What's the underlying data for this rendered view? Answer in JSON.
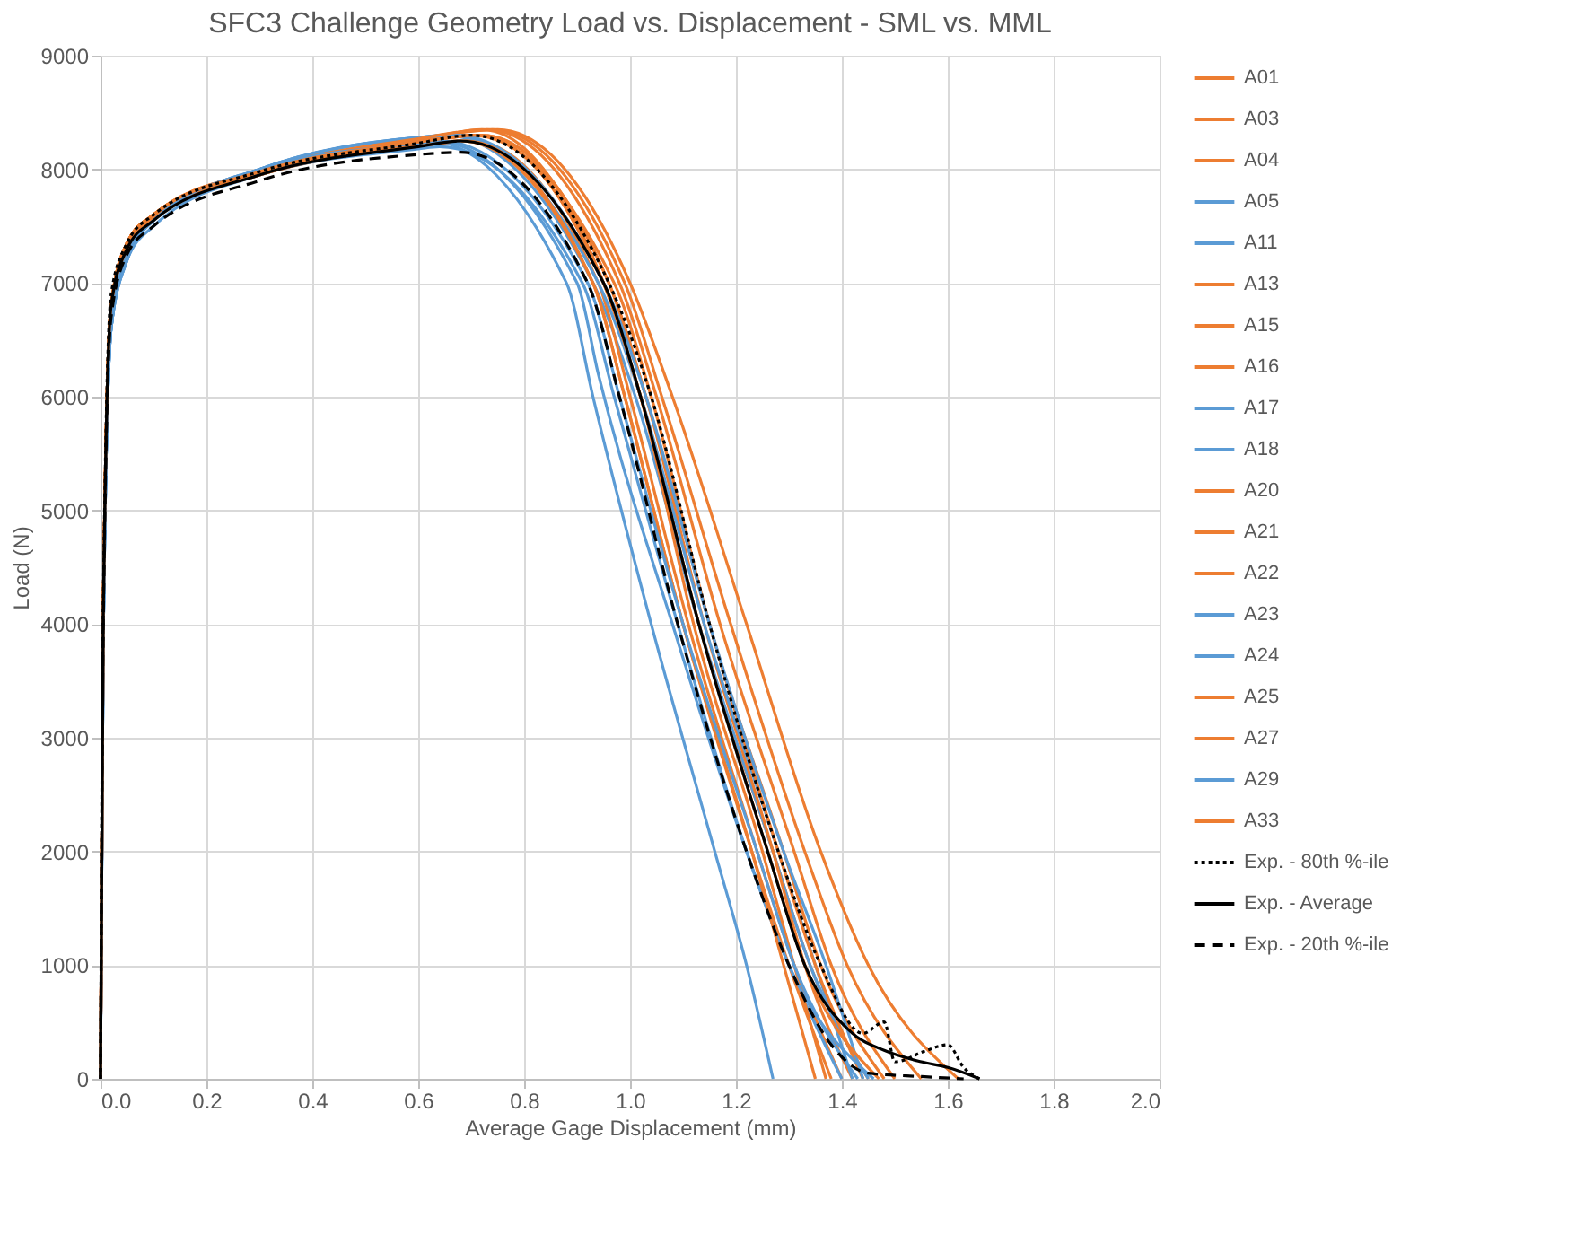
{
  "chart_data": {
    "type": "line",
    "title": "SFC3 Challenge Geometry Load vs. Displacement - SML vs. MML",
    "xlabel": "Average Gage Displacement (mm)",
    "ylabel": "Load (N)",
    "xlim": [
      0,
      2
    ],
    "xticks": [
      {
        "value": 0,
        "label": "0.0"
      },
      {
        "value": 0.2,
        "label": "0.2"
      },
      {
        "value": 0.4,
        "label": "0.4"
      },
      {
        "value": 0.6,
        "label": "0.6"
      },
      {
        "value": 0.8,
        "label": "0.8"
      },
      {
        "value": 1,
        "label": "1.0"
      },
      {
        "value": 1.2,
        "label": "1.2"
      },
      {
        "value": 1.4,
        "label": "1.4"
      },
      {
        "value": 1.6,
        "label": "1.6"
      },
      {
        "value": 1.8,
        "label": "1.8"
      },
      {
        "value": 2,
        "label": "2.0"
      }
    ],
    "ylim": [
      0,
      9000
    ],
    "yticks": [
      0,
      1000,
      2000,
      3000,
      4000,
      5000,
      6000,
      7000,
      8000,
      9000
    ],
    "grid": true,
    "legend": "right",
    "marker": "none",
    "series": [
      {
        "name": "A01",
        "color": "#ed7d31",
        "line_style": "solid",
        "x": [
          0,
          0.005,
          0.02,
          0.05,
          0.1,
          0.3,
          0.6,
          0.72,
          0.95,
          1.02,
          1.13,
          1.27,
          1.34,
          1.45
        ],
        "values": [
          0,
          4000,
          6800,
          7350,
          7600,
          7980,
          8250,
          8350,
          7000,
          6000,
          4000,
          2000,
          1000,
          0
        ]
      },
      {
        "name": "A03",
        "color": "#ed7d31",
        "line_style": "solid",
        "x": [
          0,
          0.005,
          0.02,
          0.05,
          0.1,
          0.3,
          0.6,
          0.7,
          0.97,
          1.04,
          1.15,
          1.29,
          1.36,
          1.48
        ],
        "values": [
          0,
          4000,
          6800,
          7350,
          7600,
          7980,
          8250,
          8300,
          7000,
          6000,
          4000,
          2000,
          1000,
          0
        ]
      },
      {
        "name": "A04",
        "color": "#ed7d31",
        "line_style": "solid",
        "x": [
          0,
          0.005,
          0.02,
          0.05,
          0.1,
          0.3,
          0.6,
          0.75,
          1.0,
          1.08,
          1.22,
          1.36,
          1.45,
          1.62
        ],
        "values": [
          0,
          4000,
          6800,
          7350,
          7600,
          7980,
          8270,
          8350,
          7000,
          6000,
          4000,
          2000,
          1000,
          0
        ]
      },
      {
        "name": "A05",
        "color": "#5b9bd5",
        "line_style": "solid",
        "x": [
          0,
          0.005,
          0.02,
          0.05,
          0.1,
          0.3,
          0.6,
          0.65,
          0.93,
          1.01,
          1.13,
          1.27,
          1.34,
          1.45
        ],
        "values": [
          0,
          3800,
          6600,
          7250,
          7550,
          8000,
          8280,
          8300,
          7000,
          6000,
          4000,
          2000,
          1000,
          0
        ]
      },
      {
        "name": "A11",
        "color": "#5b9bd5",
        "line_style": "solid",
        "x": [
          0,
          0.005,
          0.02,
          0.05,
          0.1,
          0.3,
          0.6,
          0.62,
          0.88,
          0.93,
          1.04,
          1.16,
          1.22,
          1.27
        ],
        "values": [
          0,
          3800,
          6600,
          7200,
          7550,
          8000,
          8240,
          8250,
          7000,
          6000,
          4000,
          2000,
          1000,
          0
        ]
      },
      {
        "name": "A13",
        "color": "#ed7d31",
        "line_style": "solid",
        "x": [
          0,
          0.005,
          0.02,
          0.05,
          0.1,
          0.3,
          0.6,
          0.7,
          0.94,
          1.0,
          1.11,
          1.24,
          1.31,
          1.4
        ],
        "values": [
          0,
          4000,
          6800,
          7300,
          7580,
          7950,
          8200,
          8250,
          7000,
          6000,
          4000,
          2000,
          1000,
          0
        ]
      },
      {
        "name": "A15",
        "color": "#ed7d31",
        "line_style": "solid",
        "x": [
          0,
          0.005,
          0.02,
          0.05,
          0.1,
          0.3,
          0.6,
          0.72,
          0.96,
          1.03,
          1.14,
          1.27,
          1.33,
          1.42
        ],
        "values": [
          0,
          4000,
          6800,
          7350,
          7600,
          7980,
          8240,
          8300,
          7000,
          6000,
          4000,
          2000,
          1000,
          0
        ]
      },
      {
        "name": "A16",
        "color": "#ed7d31",
        "line_style": "solid",
        "x": [
          0,
          0.005,
          0.02,
          0.05,
          0.1,
          0.3,
          0.6,
          0.74,
          0.99,
          1.06,
          1.19,
          1.33,
          1.41,
          1.55
        ],
        "values": [
          0,
          4000,
          6800,
          7350,
          7600,
          7990,
          8270,
          8350,
          7000,
          6000,
          4000,
          2000,
          1000,
          0
        ]
      },
      {
        "name": "A17",
        "color": "#5b9bd5",
        "line_style": "solid",
        "x": [
          0,
          0.005,
          0.02,
          0.05,
          0.1,
          0.3,
          0.6,
          0.63,
          0.9,
          0.94,
          1.08,
          1.22,
          1.3,
          1.4
        ],
        "values": [
          0,
          3800,
          6600,
          7200,
          7550,
          8000,
          8230,
          8250,
          7000,
          6200,
          4000,
          2000,
          1000,
          0
        ]
      },
      {
        "name": "A18",
        "color": "#5b9bd5",
        "line_style": "solid",
        "x": [
          0,
          0.005,
          0.02,
          0.05,
          0.1,
          0.3,
          0.6,
          0.66,
          0.94,
          1.02,
          1.14,
          1.28,
          1.35,
          1.42
        ],
        "values": [
          0,
          3800,
          6600,
          7250,
          7550,
          8000,
          8280,
          8300,
          7000,
          6000,
          4000,
          2000,
          1000,
          0
        ]
      },
      {
        "name": "A20",
        "color": "#ed7d31",
        "line_style": "solid",
        "x": [
          0,
          0.005,
          0.02,
          0.05,
          0.1,
          0.3,
          0.6,
          0.71,
          0.95,
          1.02,
          1.12,
          1.25,
          1.31,
          1.37
        ],
        "values": [
          0,
          4000,
          6800,
          7350,
          7600,
          7980,
          8240,
          8300,
          7000,
          6000,
          4000,
          2000,
          1000,
          0
        ]
      },
      {
        "name": "A21",
        "color": "#ed7d31",
        "line_style": "solid",
        "x": [
          0,
          0.005,
          0.02,
          0.05,
          0.1,
          0.3,
          0.6,
          0.68,
          0.93,
          0.99,
          1.1,
          1.23,
          1.3,
          1.38
        ],
        "values": [
          0,
          4000,
          6800,
          7300,
          7580,
          7950,
          8220,
          8250,
          7000,
          6000,
          4000,
          2000,
          1000,
          0
        ]
      },
      {
        "name": "A22",
        "color": "#ed7d31",
        "line_style": "solid",
        "x": [
          0,
          0.005,
          0.02,
          0.05,
          0.1,
          0.3,
          0.6,
          0.72,
          0.96,
          1.03,
          1.15,
          1.28,
          1.35,
          1.44
        ],
        "values": [
          0,
          4000,
          6800,
          7350,
          7600,
          7980,
          8240,
          8300,
          7000,
          6000,
          4000,
          2000,
          1000,
          0
        ]
      },
      {
        "name": "A23",
        "color": "#5b9bd5",
        "line_style": "solid",
        "x": [
          0,
          0.005,
          0.02,
          0.05,
          0.1,
          0.3,
          0.6,
          0.64,
          0.91,
          0.97,
          1.09,
          1.22,
          1.3,
          1.46
        ],
        "values": [
          0,
          3800,
          6600,
          7200,
          7500,
          7950,
          8180,
          8200,
          7000,
          6000,
          4000,
          2000,
          1000,
          0
        ]
      },
      {
        "name": "A24",
        "color": "#5b9bd5",
        "line_style": "solid",
        "x": [
          0,
          0.005,
          0.02,
          0.05,
          0.1,
          0.3,
          0.6,
          0.67,
          0.95,
          1.03,
          1.15,
          1.29,
          1.37,
          1.44
        ],
        "values": [
          0,
          3800,
          6600,
          7250,
          7550,
          8000,
          8280,
          8300,
          7000,
          6000,
          4000,
          2000,
          1000,
          0
        ]
      },
      {
        "name": "A25",
        "color": "#ed7d31",
        "line_style": "solid",
        "x": [
          0,
          0.005,
          0.02,
          0.05,
          0.1,
          0.3,
          0.6,
          0.73,
          0.98,
          1.05,
          1.17,
          1.31,
          1.38,
          1.5
        ],
        "values": [
          0,
          4000,
          6800,
          7350,
          7600,
          7990,
          8270,
          8350,
          7000,
          6000,
          4000,
          2000,
          1000,
          0
        ]
      },
      {
        "name": "A27",
        "color": "#ed7d31",
        "line_style": "solid",
        "x": [
          0,
          0.005,
          0.02,
          0.05,
          0.1,
          0.3,
          0.6,
          0.69,
          0.93,
          0.99,
          1.1,
          1.23,
          1.29,
          1.35
        ],
        "values": [
          0,
          4000,
          6800,
          7300,
          7580,
          7950,
          8220,
          8250,
          7000,
          6000,
          4000,
          2000,
          1000,
          0
        ]
      },
      {
        "name": "A29",
        "color": "#5b9bd5",
        "line_style": "solid",
        "x": [
          0,
          0.005,
          0.02,
          0.05,
          0.1,
          0.3,
          0.6,
          0.64,
          0.92,
          0.98,
          1.1,
          1.24,
          1.31,
          1.43
        ],
        "values": [
          0,
          3800,
          6600,
          7200,
          7550,
          8000,
          8230,
          8250,
          7000,
          6000,
          4000,
          2000,
          1000,
          0
        ]
      },
      {
        "name": "A33",
        "color": "#ed7d31",
        "line_style": "solid",
        "x": [
          0,
          0.005,
          0.02,
          0.05,
          0.1,
          0.3,
          0.6,
          0.71,
          0.95,
          1.02,
          1.13,
          1.26,
          1.33,
          1.47
        ],
        "values": [
          0,
          4000,
          6800,
          7350,
          7600,
          7980,
          8240,
          8300,
          7000,
          6000,
          4000,
          2000,
          1000,
          0
        ]
      },
      {
        "name": "Exp. - 80th %-ile",
        "color": "#000000",
        "line_style": "dotted",
        "x": [
          0,
          0.005,
          0.02,
          0.05,
          0.1,
          0.3,
          0.6,
          0.7,
          0.96,
          1.04,
          1.15,
          1.28,
          1.36,
          1.44,
          1.48,
          1.5,
          1.56,
          1.6,
          1.63,
          1.66
        ],
        "values": [
          0,
          4100,
          6900,
          7350,
          7600,
          7980,
          8230,
          8300,
          7000,
          6000,
          4000,
          2000,
          1000,
          400,
          500,
          150,
          250,
          300,
          100,
          0
        ]
      },
      {
        "name": "Exp. - Average",
        "color": "#000000",
        "line_style": "solid",
        "x": [
          0,
          0.005,
          0.02,
          0.05,
          0.1,
          0.3,
          0.6,
          0.68,
          0.95,
          1.02,
          1.13,
          1.26,
          1.33,
          1.42,
          1.48,
          1.55,
          1.6,
          1.66
        ],
        "values": [
          0,
          4000,
          6800,
          7300,
          7550,
          7950,
          8200,
          8250,
          7000,
          6000,
          4000,
          2000,
          1000,
          400,
          250,
          150,
          100,
          0
        ]
      },
      {
        "name": "Exp. - 20th %-ile",
        "color": "#000000",
        "line_style": "dashed",
        "x": [
          0,
          0.005,
          0.02,
          0.05,
          0.1,
          0.3,
          0.6,
          0.68,
          0.92,
          0.98,
          1.09,
          1.22,
          1.3,
          1.38,
          1.45,
          1.55,
          1.63
        ],
        "values": [
          0,
          3900,
          6700,
          7250,
          7500,
          7900,
          8130,
          8150,
          7000,
          6000,
          4000,
          2000,
          1000,
          300,
          50,
          20,
          0
        ]
      }
    ]
  }
}
